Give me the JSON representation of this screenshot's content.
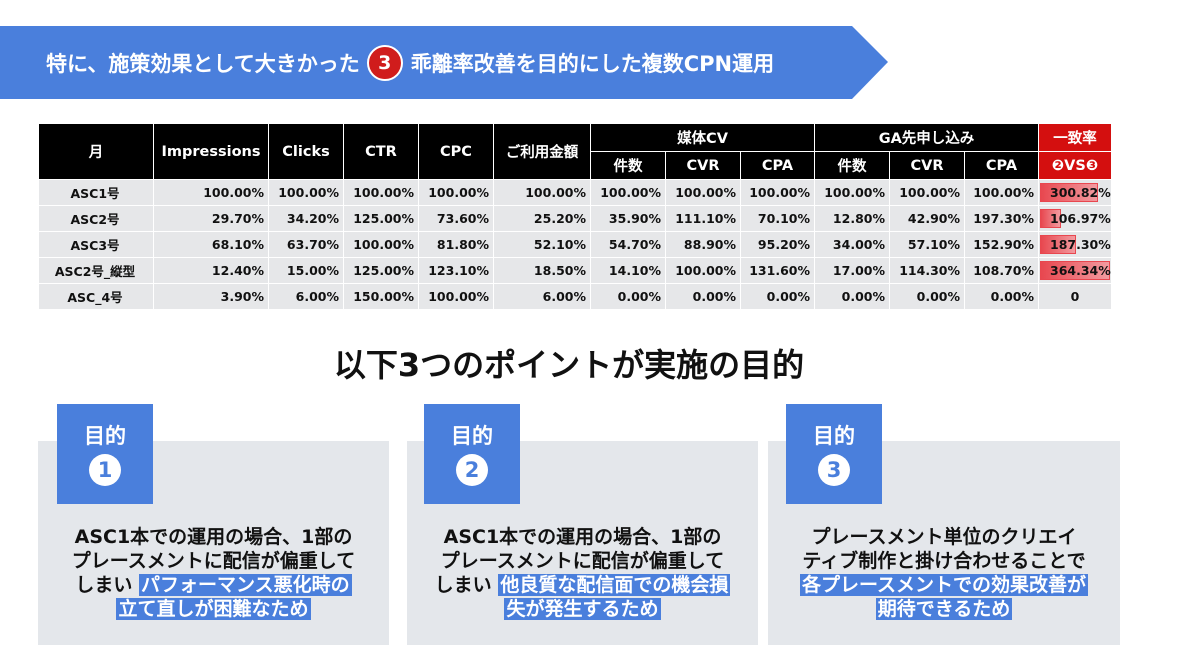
{
  "banner": {
    "prefix": "特に、施策効果として大きかった",
    "badge": "3",
    "suffix": "乖離率改善を目的にした複数CPN運用"
  },
  "table": {
    "headers": {
      "month": "月",
      "impressions": "Impressions",
      "clicks": "Clicks",
      "ctr": "CTR",
      "cpc": "CPC",
      "spend": "ご利用金額",
      "media_cv": "媒体CV",
      "ga_pre": "GA先申し込み",
      "match_rate": "一致率",
      "count": "件数",
      "cvr": "CVR",
      "cpa": "CPA",
      "vs": "❷VS❸"
    },
    "rows": [
      {
        "name": "ASC1号",
        "impressions": "100.00%",
        "clicks": "100.00%",
        "ctr": "100.00%",
        "cpc": "100.00%",
        "spend": "100.00%",
        "media_count": "100.00%",
        "media_cvr": "100.00%",
        "media_cpa": "100.00%",
        "ga_count": "100.00%",
        "ga_cvr": "100.00%",
        "ga_cpa": "100.00%",
        "match": "300.82%",
        "match_value": 300.82
      },
      {
        "name": "ASC2号",
        "impressions": "29.70%",
        "clicks": "34.20%",
        "ctr": "125.00%",
        "cpc": "73.60%",
        "spend": "25.20%",
        "media_count": "35.90%",
        "media_cvr": "111.10%",
        "media_cpa": "70.10%",
        "ga_count": "12.80%",
        "ga_cvr": "42.90%",
        "ga_cpa": "197.30%",
        "match": "106.97%",
        "match_value": 106.97
      },
      {
        "name": "ASC3号",
        "impressions": "68.10%",
        "clicks": "63.70%",
        "ctr": "100.00%",
        "cpc": "81.80%",
        "spend": "52.10%",
        "media_count": "54.70%",
        "media_cvr": "88.90%",
        "media_cpa": "95.20%",
        "ga_count": "34.00%",
        "ga_cvr": "57.10%",
        "ga_cpa": "152.90%",
        "match": "187.30%",
        "match_value": 187.3
      },
      {
        "name": "ASC2号_縦型",
        "impressions": "12.40%",
        "clicks": "15.00%",
        "ctr": "125.00%",
        "cpc": "123.10%",
        "spend": "18.50%",
        "media_count": "14.10%",
        "media_cvr": "100.00%",
        "media_cpa": "131.60%",
        "ga_count": "17.00%",
        "ga_cvr": "114.30%",
        "ga_cpa": "108.70%",
        "match": "364.34%",
        "match_value": 364.34
      },
      {
        "name": "ASC_4号",
        "impressions": "3.90%",
        "clicks": "6.00%",
        "ctr": "150.00%",
        "cpc": "100.00%",
        "spend": "6.00%",
        "media_count": "0.00%",
        "media_cvr": "0.00%",
        "media_cpa": "0.00%",
        "ga_count": "0.00%",
        "ga_cvr": "0.00%",
        "ga_cpa": "0.00%",
        "match": "0",
        "match_value": 0
      }
    ],
    "bar_max": 364.34
  },
  "heading": "以下3つのポイントが実施の目的",
  "cards": [
    {
      "tab": "目的",
      "num": "1",
      "line1": "ASC1本での運用の場合、1部の",
      "line2": "プレースメントに配信が偏重して",
      "line3": "しまい",
      "hl1": "パフォーマンス悪化時の",
      "hl2": "立て直しが困難なため"
    },
    {
      "tab": "目的",
      "num": "2",
      "line1": "ASC1本での運用の場合、1部の",
      "line2": "プレースメントに配信が偏重して",
      "line3": "しまい",
      "hl1": "他良質な配信面での機会損",
      "hl2": "失が発生するため"
    },
    {
      "tab": "目的",
      "num": "3",
      "line1": "プレースメント単位のクリエイ",
      "line2": "ティブ制作と掛け合わせることで",
      "hl1": "各プレースメントでの効果改善が",
      "hl2": "期待できるため"
    }
  ]
}
